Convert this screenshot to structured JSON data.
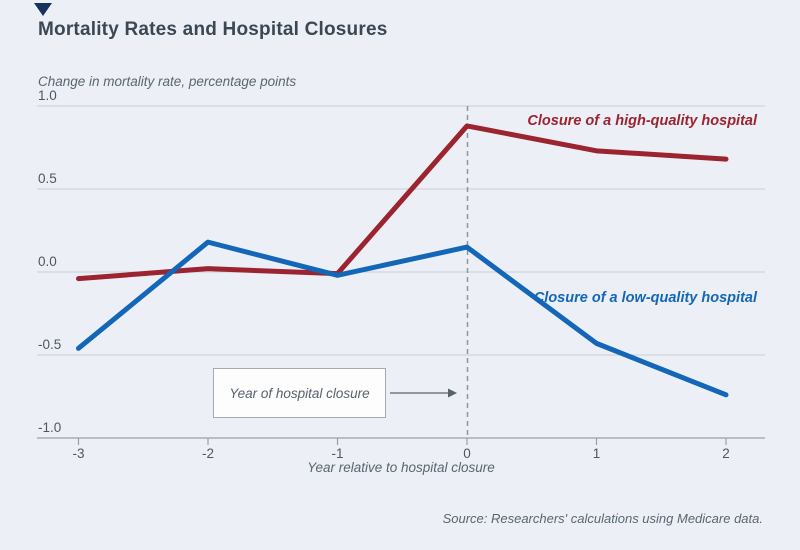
{
  "figure": {
    "title": "Mortality Rates and Hospital Closures",
    "y_caption": "Change in mortality rate, percentage points",
    "x_caption": "Year relative to hospital closure",
    "annotation_label": "Year of hospital closure",
    "source": "Source: Researchers' calculations using Medicare data.",
    "background_color": "#ecf0f6",
    "corner_mark_color": "#16335e"
  },
  "chart_data": {
    "type": "line",
    "title": "Mortality Rates and Hospital Closures",
    "xlabel": "Year relative to hospital closure",
    "ylabel": "Change in mortality rate, percentage points",
    "x": [
      -3,
      -2,
      -1,
      0,
      1,
      2
    ],
    "x_tick_labels": [
      "-3",
      "-2",
      "-1",
      "0",
      "1",
      "2"
    ],
    "y_ticks": [
      1.0,
      0.5,
      0.0,
      -0.5,
      -1.0
    ],
    "y_tick_labels": [
      "1.0",
      "0.5",
      "0.0",
      "-0.5",
      "-1.0"
    ],
    "ylim": [
      -1.0,
      1.0
    ],
    "grid": true,
    "legend_position": "inline-right",
    "event_line_x": 0,
    "annotation": "Year of hospital closure",
    "source": "Source: Researchers' calculations using Medicare data.",
    "series": [
      {
        "name": "Closure of a high-quality hospital",
        "color": "#9b2430",
        "values": [
          -0.04,
          0.02,
          -0.01,
          0.88,
          0.73,
          0.68
        ]
      },
      {
        "name": "Closure of a low-quality hospital",
        "color": "#1366b8",
        "values": [
          -0.46,
          0.18,
          -0.02,
          0.15,
          -0.43,
          -0.74
        ]
      }
    ],
    "colors": {
      "gridline": "#c7cdd4",
      "axis": "#98a1aa",
      "tick_text": "#4d5761",
      "dashed_line": "#8d959d",
      "arrow": "#59626c"
    }
  }
}
